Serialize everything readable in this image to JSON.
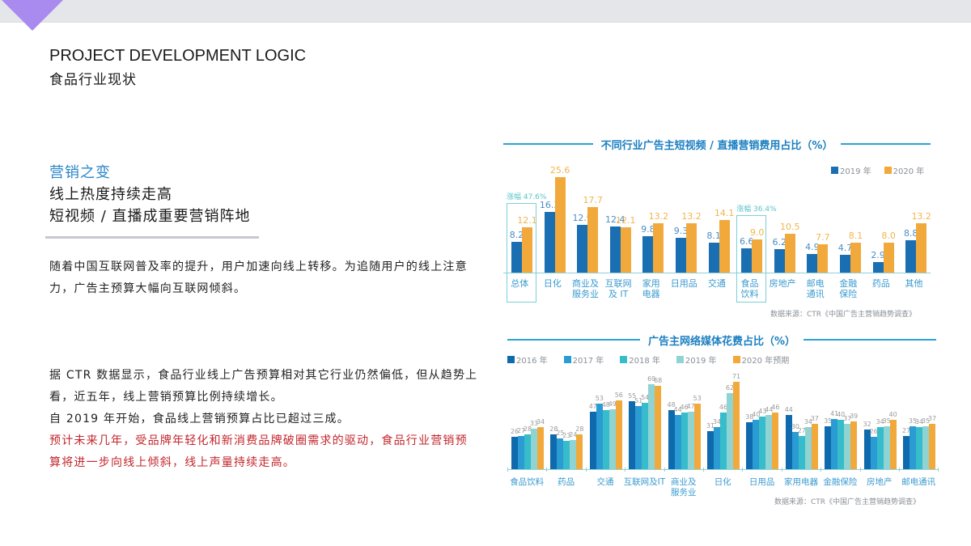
{
  "header": {
    "title_en": "PROJECT DEVELOPMENT LOGIC",
    "title_cn": "食品行业现状"
  },
  "section": {
    "tag": "营销之变",
    "headline_1": "线上热度持续走高",
    "headline_2": "短视频 / 直播成重要营销阵地"
  },
  "paragraphs": {
    "p1": "随着中国互联网普及率的提升，用户加速向线上转移。为追随用户的线上注意力，广告主预算大幅向互联网倾斜。",
    "p2_line1": "据 CTR 数据显示，食品行业线上广告预算相对其它行业仍然偏低，但从趋势上看，近五年，线上营销预算比例持续增长。",
    "p2_line2": "自 2019 年开始，食品线上营销预算占比已超过三成。",
    "p2_red": "预计未来几年，受品牌年轻化和新消费品牌破圈需求的驱动，食品行业营销预算将进一步向线上倾斜，线上声量持续走高。"
  },
  "colors": {
    "accent_blue": "#1b7fc1",
    "series_2019_top": "#1a6fb3",
    "series_2020_top": "#f2a93b",
    "red_text": "#c3262c",
    "triangle": "#a98bef"
  },
  "chart_data": [
    {
      "type": "bar",
      "title": "不同行业广告主短视频 / 直播营销费用占比（%）",
      "xlabel": "",
      "ylabel": "%",
      "legend_position": "top-right",
      "grid": false,
      "categories": [
        "总体",
        "日化",
        "商业及\n服务业",
        "互联网\n及 IT",
        "家用\n电器",
        "日用品",
        "交通",
        "食品\n饮料",
        "房地产",
        "邮电\n通讯",
        "金融\n保险",
        "药品",
        "其他"
      ],
      "series": [
        {
          "name": "2019 年",
          "color": "#1a6fb3",
          "values": [
            8.2,
            16.3,
            12.9,
            12.4,
            9.8,
            9.3,
            8.1,
            6.6,
            6.2,
            4.9,
            4.7,
            2.9,
            8.8
          ]
        },
        {
          "name": "2020 年",
          "color": "#f2a93b",
          "values": [
            12.1,
            25.6,
            17.7,
            12.1,
            13.2,
            13.2,
            14.1,
            9.0,
            10.5,
            7.7,
            8.1,
            8.0,
            13.2
          ]
        }
      ],
      "value_labels": {
        "2019": [
          "8.2",
          "16.3",
          "12.9",
          "12.4",
          "9.8",
          "9.3",
          "8.1",
          "6.6",
          "6.2",
          "4.9",
          "4.7",
          "2.9",
          "8.8"
        ],
        "2020": [
          "12.1",
          "25.6",
          "17.7",
          "12.1",
          "13.2",
          "13.2",
          "14.1",
          "9.0",
          "10.5",
          "7.7",
          "8.1",
          "8.0",
          "13.2"
        ]
      },
      "annotations": [
        {
          "category": "总体",
          "text": "涨幅 47.6%"
        },
        {
          "category": "食品\n饮料",
          "text": "涨幅 36.4%"
        }
      ],
      "source": "数据来源：CTR《中国广告主营销趋势调查》",
      "ylim": [
        0,
        28
      ]
    },
    {
      "type": "bar",
      "title": "广告主网络媒体花费占比（%）",
      "xlabel": "",
      "ylabel": "%",
      "legend_position": "top-left",
      "grid": false,
      "categories": [
        "食品饮料",
        "药品",
        "交通",
        "互联网及IT",
        "商业及\n服务业",
        "日化",
        "日用品",
        "家用电器",
        "金融保险",
        "房地产",
        "邮电通讯"
      ],
      "series": [
        {
          "name": "2016 年",
          "color": "#0f6aad",
          "values": [
            26,
            28,
            47,
            55,
            48,
            31,
            38,
            44,
            35,
            32,
            27
          ]
        },
        {
          "name": "2017 年",
          "color": "#2b9bd3",
          "values": [
            27,
            25,
            53,
            51,
            44,
            34,
            40,
            30,
            41,
            26,
            35
          ]
        },
        {
          "name": "2018 年",
          "color": "#36bccb",
          "values": [
            28,
            23,
            48,
            54,
            46,
            46,
            43,
            27,
            40,
            34,
            34
          ]
        },
        {
          "name": "2019 年",
          "color": "#8fd3d3",
          "values": [
            33,
            24,
            49,
            69,
            47,
            62,
            44,
            34,
            37,
            35,
            35
          ]
        },
        {
          "name": "2020 年预期",
          "color": "#f2a93b",
          "values": [
            34,
            28,
            56,
            68,
            53,
            71,
            46,
            37,
            39,
            40,
            37
          ]
        }
      ],
      "source": "数据来源：CTR《中国广告主营销趋势调查》",
      "ylim": [
        0,
        80
      ]
    }
  ]
}
